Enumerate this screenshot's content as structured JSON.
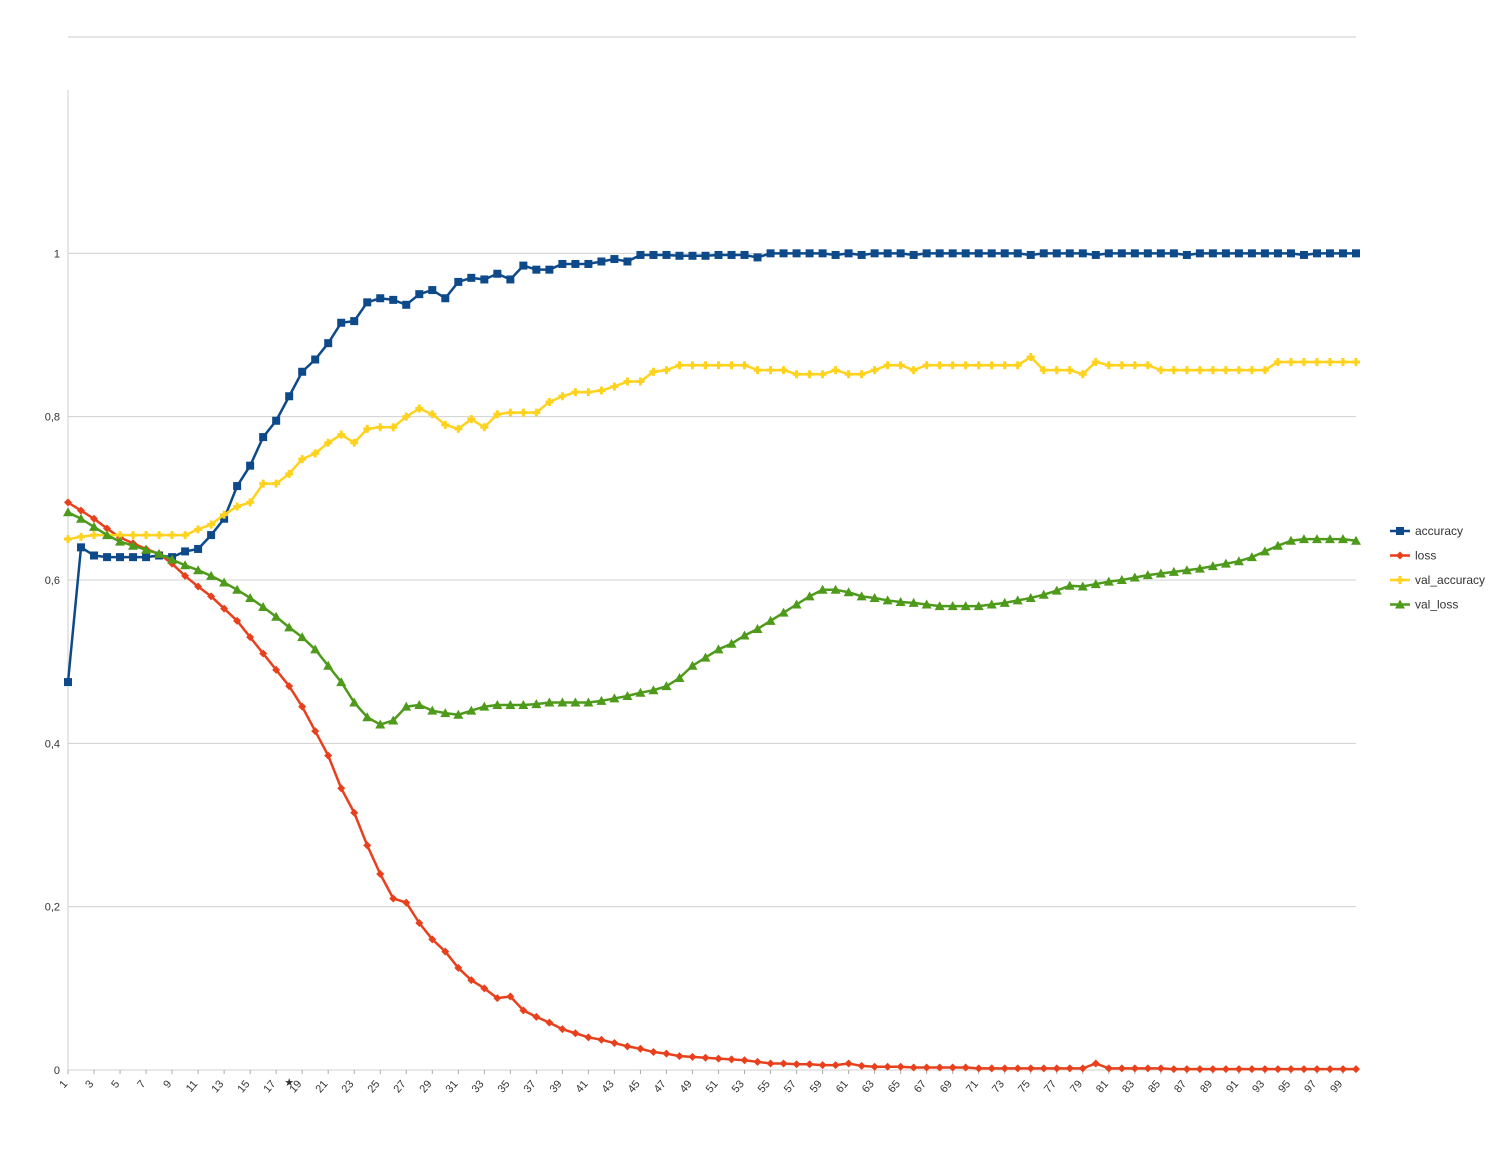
{
  "chart_data": {
    "type": "line",
    "title": "",
    "xlabel": "",
    "ylabel": "",
    "ylim": [
      0,
      1.2
    ],
    "yticks": [
      {
        "value": 0,
        "label": "0"
      },
      {
        "value": 0.2,
        "label": "0,2"
      },
      {
        "value": 0.4,
        "label": "0,4"
      },
      {
        "value": 0.6,
        "label": "0,6"
      },
      {
        "value": 0.8,
        "label": "0,8"
      },
      {
        "value": 1,
        "label": "1"
      }
    ],
    "x": [
      1,
      2,
      3,
      4,
      5,
      6,
      7,
      8,
      9,
      10,
      11,
      12,
      13,
      14,
      15,
      16,
      17,
      18,
      19,
      20,
      21,
      22,
      23,
      24,
      25,
      26,
      27,
      28,
      29,
      30,
      31,
      32,
      33,
      34,
      35,
      36,
      37,
      38,
      39,
      40,
      41,
      42,
      43,
      44,
      45,
      46,
      47,
      48,
      49,
      50,
      51,
      52,
      53,
      54,
      55,
      56,
      57,
      58,
      59,
      60,
      61,
      62,
      63,
      64,
      65,
      66,
      67,
      68,
      69,
      70,
      71,
      72,
      73,
      74,
      75,
      76,
      77,
      78,
      79,
      80,
      81,
      82,
      83,
      84,
      85,
      86,
      87,
      88,
      89,
      90,
      91,
      92,
      93,
      94,
      95,
      96,
      97,
      98,
      99,
      100
    ],
    "xtick_labels": [
      "1",
      "3",
      "5",
      "7",
      "9",
      "11",
      "13",
      "15",
      "17",
      "19",
      "21",
      "23",
      "25",
      "27",
      "29",
      "31",
      "33",
      "35",
      "37",
      "39",
      "41",
      "43",
      "45",
      "47",
      "49",
      "51",
      "53",
      "55",
      "57",
      "59",
      "61",
      "63",
      "65",
      "67",
      "69",
      "71",
      "73",
      "75",
      "77",
      "79",
      "81",
      "83",
      "85",
      "87",
      "89",
      "91",
      "93",
      "95",
      "97",
      "99"
    ],
    "grid": true,
    "legend_position": "right",
    "marker_note": "★",
    "marker_note_x": 18,
    "series": [
      {
        "name": "accuracy",
        "color": "#0e4a8a",
        "marker": "square",
        "values": [
          0.475,
          0.64,
          0.63,
          0.628,
          0.628,
          0.628,
          0.628,
          0.63,
          0.628,
          0.635,
          0.638,
          0.655,
          0.675,
          0.715,
          0.74,
          0.775,
          0.795,
          0.825,
          0.855,
          0.87,
          0.89,
          0.915,
          0.917,
          0.94,
          0.945,
          0.943,
          0.937,
          0.95,
          0.955,
          0.945,
          0.965,
          0.97,
          0.968,
          0.975,
          0.968,
          0.985,
          0.98,
          0.98,
          0.987,
          0.987,
          0.987,
          0.99,
          0.993,
          0.99,
          0.998,
          0.998,
          0.998,
          0.997,
          0.997,
          0.997,
          0.998,
          0.998,
          0.998,
          0.995,
          1,
          1,
          1,
          1,
          1,
          0.998,
          1,
          0.998,
          1,
          1,
          1,
          0.998,
          1,
          1,
          1,
          1,
          1,
          1,
          1,
          1,
          0.998,
          1,
          1,
          1,
          1,
          0.998,
          1,
          1,
          1,
          1,
          1,
          1,
          0.998,
          1,
          1,
          1,
          1,
          1,
          1,
          1,
          1,
          0.998,
          1,
          1,
          1,
          1
        ]
      },
      {
        "name": "loss",
        "color": "#e8401c",
        "marker": "diamond",
        "values": [
          0.695,
          0.685,
          0.675,
          0.663,
          0.652,
          0.645,
          0.638,
          0.632,
          0.62,
          0.605,
          0.592,
          0.58,
          0.565,
          0.55,
          0.53,
          0.51,
          0.49,
          0.47,
          0.445,
          0.415,
          0.385,
          0.345,
          0.315,
          0.275,
          0.24,
          0.21,
          0.205,
          0.18,
          0.16,
          0.145,
          0.125,
          0.11,
          0.1,
          0.088,
          0.09,
          0.073,
          0.065,
          0.058,
          0.05,
          0.045,
          0.04,
          0.037,
          0.033,
          0.029,
          0.026,
          0.022,
          0.02,
          0.017,
          0.016,
          0.015,
          0.014,
          0.013,
          0.012,
          0.01,
          0.008,
          0.008,
          0.007,
          0.007,
          0.006,
          0.006,
          0.008,
          0.005,
          0.004,
          0.004,
          0.004,
          0.003,
          0.003,
          0.003,
          0.003,
          0.003,
          0.002,
          0.002,
          0.002,
          0.002,
          0.002,
          0.002,
          0.002,
          0.002,
          0.002,
          0.008,
          0.002,
          0.002,
          0.002,
          0.002,
          0.002,
          0.001,
          0.001,
          0.001,
          0.001,
          0.001,
          0.001,
          0.001,
          0.001,
          0.001,
          0.001,
          0.001,
          0.001,
          0.001,
          0.001,
          0.001
        ]
      },
      {
        "name": "val_accuracy",
        "color": "#ffd21e",
        "marker": "cross",
        "values": [
          0.65,
          0.653,
          0.655,
          0.655,
          0.655,
          0.655,
          0.655,
          0.655,
          0.655,
          0.655,
          0.662,
          0.668,
          0.68,
          0.69,
          0.695,
          0.718,
          0.718,
          0.73,
          0.748,
          0.755,
          0.768,
          0.778,
          0.768,
          0.785,
          0.787,
          0.787,
          0.8,
          0.81,
          0.803,
          0.79,
          0.785,
          0.797,
          0.787,
          0.803,
          0.805,
          0.805,
          0.805,
          0.818,
          0.825,
          0.83,
          0.83,
          0.832,
          0.837,
          0.843,
          0.843,
          0.855,
          0.857,
          0.863,
          0.863,
          0.863,
          0.863,
          0.863,
          0.863,
          0.857,
          0.857,
          0.857,
          0.852,
          0.852,
          0.852,
          0.857,
          0.852,
          0.852,
          0.857,
          0.863,
          0.863,
          0.857,
          0.863,
          0.863,
          0.863,
          0.863,
          0.863,
          0.863,
          0.863,
          0.863,
          0.873,
          0.857,
          0.857,
          0.857,
          0.852,
          0.867,
          0.863,
          0.863,
          0.863,
          0.863,
          0.857,
          0.857,
          0.857,
          0.857,
          0.857,
          0.857,
          0.857,
          0.857,
          0.857,
          0.867,
          0.867,
          0.867,
          0.867,
          0.867,
          0.867,
          0.867
        ]
      },
      {
        "name": "val_loss",
        "color": "#4e9a1a",
        "marker": "triangle",
        "values": [
          0.683,
          0.675,
          0.665,
          0.655,
          0.647,
          0.642,
          0.637,
          0.632,
          0.625,
          0.618,
          0.612,
          0.605,
          0.597,
          0.588,
          0.578,
          0.567,
          0.555,
          0.542,
          0.53,
          0.515,
          0.495,
          0.475,
          0.45,
          0.432,
          0.423,
          0.428,
          0.445,
          0.447,
          0.44,
          0.437,
          0.435,
          0.44,
          0.445,
          0.447,
          0.447,
          0.447,
          0.448,
          0.45,
          0.45,
          0.45,
          0.45,
          0.452,
          0.455,
          0.458,
          0.462,
          0.465,
          0.47,
          0.48,
          0.495,
          0.505,
          0.515,
          0.522,
          0.532,
          0.54,
          0.55,
          0.56,
          0.57,
          0.58,
          0.588,
          0.588,
          0.585,
          0.58,
          0.578,
          0.575,
          0.573,
          0.572,
          0.57,
          0.568,
          0.568,
          0.568,
          0.568,
          0.57,
          0.572,
          0.575,
          0.578,
          0.582,
          0.587,
          0.593,
          0.592,
          0.595,
          0.598,
          0.6,
          0.603,
          0.606,
          0.608,
          0.61,
          0.612,
          0.614,
          0.617,
          0.62,
          0.623,
          0.628,
          0.635,
          0.642,
          0.648,
          0.65,
          0.65,
          0.65,
          0.65,
          0.648
        ]
      }
    ]
  }
}
